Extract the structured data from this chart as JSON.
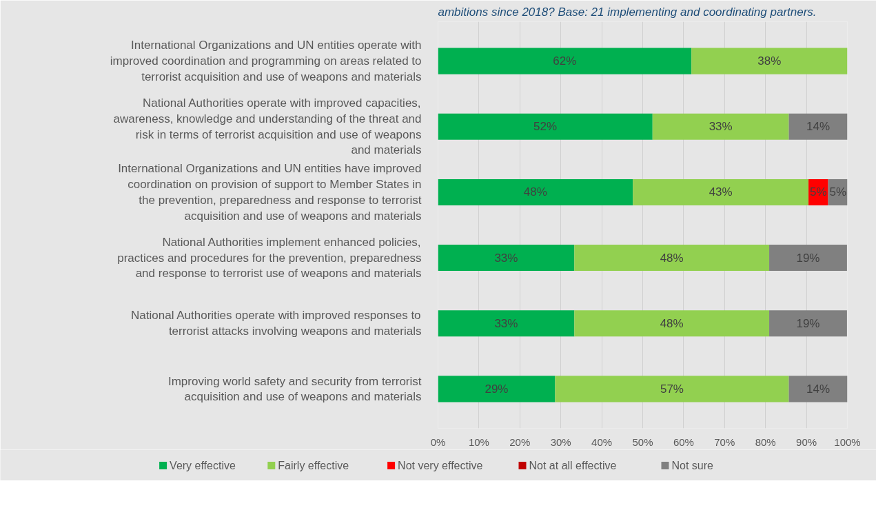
{
  "chart_data": {
    "type": "bar",
    "orientation": "horizontal",
    "stacked": true,
    "subtitle": "ambitions since 2018? Base: 21 implementing and coordinating partners.",
    "categories": [
      "International Organizations and UN entities operate with improved coordination and programming on areas related to terrorist acquisition and use of weapons and materials",
      "National Authorities operate with improved capacities, awareness, knowledge and understanding of the threat and risk in terms of terrorist acquisition and use of weapons and materials",
      "International Organizations and UN entities have improved coordination on provision of support to Member States in the prevention, preparedness and response to terrorist acquisition and use of weapons and materials",
      "National Authorities implement enhanced policies, practices and procedures for the prevention, preparedness and response to terrorist use of weapons and materials",
      "National Authorities operate with improved responses to terrorist attacks involving weapons and materials",
      "Improving world safety and security from terrorist acquisition and use of weapons and materials"
    ],
    "series": [
      {
        "name": "Very effective",
        "color": "#00b050",
        "values": [
          61.9,
          52.4,
          47.6,
          33.3,
          33.3,
          28.6
        ],
        "value_labels": [
          "62%",
          "52%",
          "48%",
          "33%",
          "33%",
          "29%"
        ]
      },
      {
        "name": "Fairly effective",
        "color": "#92d050",
        "values": [
          38.1,
          33.3,
          42.9,
          47.6,
          47.6,
          57.1
        ],
        "value_labels": [
          "38%",
          "33%",
          "43%",
          "48%",
          "48%",
          "57%"
        ]
      },
      {
        "name": "Not very effective",
        "color": "#ff0000",
        "values": [
          0,
          0,
          4.8,
          0,
          0,
          0
        ],
        "value_labels": [
          null,
          null,
          "5%",
          null,
          null,
          null
        ]
      },
      {
        "name": "Not at all effective",
        "color": "#c00000",
        "values": [
          0,
          0,
          0,
          0,
          0,
          0
        ],
        "value_labels": [
          null,
          null,
          null,
          null,
          null,
          null
        ]
      },
      {
        "name": "Not sure",
        "color": "#808080",
        "values": [
          0,
          14.3,
          4.8,
          19.0,
          19.0,
          14.3
        ],
        "value_labels": [
          null,
          "14%",
          "5%",
          "19%",
          "19%",
          "14%"
        ]
      }
    ],
    "xlim": [
      0,
      100
    ],
    "xticks": [
      {
        "value": 0,
        "label": "0%"
      },
      {
        "value": 10,
        "label": "10%"
      },
      {
        "value": 20,
        "label": "20%"
      },
      {
        "value": 30,
        "label": "30%"
      },
      {
        "value": 40,
        "label": "40%"
      },
      {
        "value": 50,
        "label": "50%"
      },
      {
        "value": 60,
        "label": "60%"
      },
      {
        "value": 70,
        "label": "70%"
      },
      {
        "value": 80,
        "label": "80%"
      },
      {
        "value": 90,
        "label": "90%"
      },
      {
        "value": 100,
        "label": "100%"
      }
    ],
    "grid": "x",
    "legend": "bottom"
  }
}
